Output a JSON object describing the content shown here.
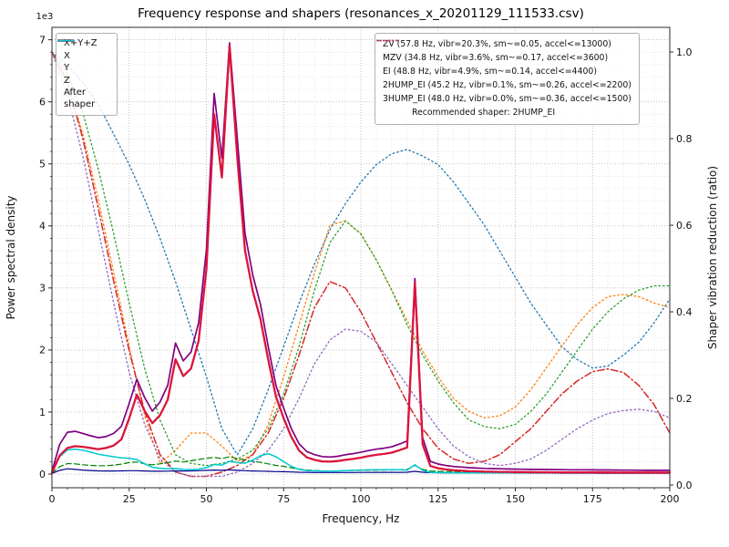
{
  "axes": {
    "x": {
      "label": "Frequency, Hz",
      "min": 0,
      "max": 200,
      "ticks": [
        0,
        25,
        50,
        75,
        100,
        125,
        150,
        175,
        200
      ],
      "tick_labels": [
        "0",
        "25",
        "50",
        "75",
        "100",
        "125",
        "150",
        "175",
        "200"
      ],
      "minor_step": 5
    },
    "y_left": {
      "label": "Power spectral density",
      "offset_text": "1e3",
      "min": -220,
      "max": 7200,
      "ticks": [
        0,
        1000,
        2000,
        3000,
        4000,
        5000,
        6000,
        7000
      ],
      "tick_labels": [
        "0",
        "1",
        "2",
        "3",
        "4",
        "5",
        "6",
        "7"
      ],
      "minor_step": 200
    },
    "y_right": {
      "label": "Shaper vibration reduction (ratio)",
      "min": -0.0063,
      "max": 1.057,
      "ticks": [
        0,
        0.2,
        0.4,
        0.6,
        0.8,
        1
      ],
      "tick_labels": [
        "0.0",
        "0.2",
        "0.4",
        "0.6",
        "0.8",
        "1.0"
      ]
    }
  },
  "legend_left": {
    "items": [
      {
        "label": "X+Y+Z",
        "color": "#800080",
        "style": "solid"
      },
      {
        "label": "X",
        "color": "#dc143c",
        "style": "solid"
      },
      {
        "label": "Y",
        "color": "#008000",
        "style": "dashed"
      },
      {
        "label": "Z",
        "color": "#00008b",
        "style": "solid"
      },
      {
        "label": "After shaper",
        "color": "#00c8d0",
        "style": "solid"
      }
    ]
  },
  "legend_right": {
    "items": [
      {
        "label": "ZV (57.8 Hz, vibr=20.3%, sm~=0.05, accel<=13000)",
        "color": "#1f77b4",
        "style": "dotted"
      },
      {
        "label": "MZV (34.8 Hz, vibr=3.6%, sm~=0.17, accel<=3600)",
        "color": "#ff7f0e",
        "style": "dotted"
      },
      {
        "label": "EI (48.8 Hz, vibr=4.9%, sm~=0.14, accel<=4400)",
        "color": "#2ca02c",
        "style": "dotted"
      },
      {
        "label": "2HUMP_EI (45.2 Hz, vibr=0.1%, sm~=0.26, accel<=2200)",
        "color": "#d62728",
        "style": "dashdot"
      },
      {
        "label": "3HUMP_EI (48.0 Hz, vibr=0.0%, sm~=0.36, accel<=1500)",
        "color": "#9467bd",
        "style": "dotted"
      }
    ],
    "note": "Recommended shaper: 2HUMP_EI"
  },
  "chart_data": {
    "type": "line",
    "title": "Frequency response and shapers (resonances_x_20201129_111533.csv)",
    "xlabel": "Frequency, Hz",
    "ylabel_left": "Power spectral density",
    "ylabel_right": "Shaper vibration reduction (ratio)",
    "xlim": [
      0,
      200
    ],
    "ylim_left": [
      -220,
      7200
    ],
    "ylim_right": [
      -0.0063,
      1.057
    ],
    "grid": "major+minor",
    "x_psd": [
      0,
      2.5,
      5,
      7.5,
      10,
      12.5,
      15,
      17.5,
      20,
      22.5,
      25,
      27.5,
      30,
      32.5,
      35,
      37.5,
      40,
      42.5,
      45,
      47.5,
      50,
      52.5,
      55,
      57.5,
      60,
      62.5,
      65,
      67.5,
      70,
      72.5,
      75,
      77.5,
      80,
      82.5,
      85,
      87.5,
      90,
      92.5,
      95,
      97.5,
      100,
      102.5,
      105,
      107.5,
      110,
      112.5,
      115,
      117.5,
      120,
      122.5,
      125,
      127.5,
      130,
      132.5,
      135,
      137.5,
      140,
      142.5,
      145,
      147.5,
      150,
      152.5,
      155,
      157.5,
      160,
      162.5,
      165,
      167.5,
      170,
      172.5,
      175,
      177.5,
      180,
      182.5,
      185,
      187.5,
      190,
      192.5,
      195,
      197.5,
      200
    ],
    "psd_series": [
      {
        "name": "X+Y+Z",
        "axis": "left",
        "color": "#800080",
        "style": "solid",
        "width": 1.7,
        "values": [
          45,
          480,
          675,
          690,
          655,
          618,
          587,
          605,
          655,
          772,
          1140,
          1530,
          1235,
          1016,
          1161,
          1433,
          2112,
          1825,
          1967,
          2440,
          3615,
          6135,
          5090,
          6950,
          5410,
          3880,
          3205,
          2738,
          2059,
          1430,
          1063,
          734,
          490,
          363,
          314,
          282,
          275,
          287,
          312,
          329,
          352,
          379,
          402,
          418,
          439,
          484,
          535,
          3150,
          585,
          204,
          162,
          138,
          122,
          113,
          103,
          98,
          92,
          89,
          86,
          83,
          80,
          79,
          76,
          75,
          74,
          73,
          71,
          70,
          69,
          69,
          68,
          66,
          66,
          65,
          64,
          64,
          62,
          61,
          61,
          61,
          61
        ]
      },
      {
        "name": "Y",
        "axis": "left",
        "color": "#008000",
        "style": "dashed",
        "width": 1.2,
        "values": [
          15,
          120,
          170,
          165,
          150,
          140,
          135,
          135,
          145,
          160,
          185,
          195,
          165,
          150,
          165,
          185,
          210,
          195,
          215,
          235,
          255,
          270,
          250,
          280,
          250,
          225,
          205,
          190,
          165,
          140,
          125,
          100,
          80,
          65,
          58,
          52,
          50,
          52,
          56,
          58,
          60,
          62,
          64,
          65,
          66,
          70,
          75,
          140,
          75,
          50,
          45,
          42,
          40,
          38,
          36,
          35,
          34,
          33,
          32,
          31,
          30,
          30,
          29,
          29,
          28,
          28,
          27,
          27,
          26,
          26,
          26,
          25,
          25,
          25,
          24,
          24,
          24,
          23,
          23,
          23,
          23
        ]
      },
      {
        "name": "Z",
        "axis": "left",
        "color": "#00008b",
        "style": "solid",
        "width": 1.2,
        "values": [
          10,
          60,
          85,
          75,
          65,
          58,
          52,
          50,
          50,
          52,
          55,
          55,
          50,
          46,
          46,
          48,
          52,
          50,
          52,
          55,
          60,
          65,
          60,
          68,
          60,
          55,
          50,
          48,
          44,
          40,
          38,
          34,
          30,
          28,
          26,
          25,
          25,
          25,
          26,
          26,
          27,
          27,
          28,
          28,
          28,
          29,
          30,
          45,
          30,
          24,
          22,
          21,
          20,
          20,
          19,
          19,
          18,
          18,
          18,
          17,
          17,
          17,
          16,
          16,
          16,
          16,
          15,
          15,
          15,
          15,
          15,
          14,
          14,
          14,
          14,
          14,
          13,
          13,
          13,
          13,
          13
        ]
      },
      {
        "name": "After shaper",
        "axis": "left",
        "color": "#00c8d0",
        "style": "solid",
        "width": 1.5,
        "values": [
          20,
          280,
          390,
          400,
          385,
          355,
          320,
          300,
          280,
          260,
          255,
          235,
          165,
          110,
          95,
          85,
          90,
          75,
          72,
          80,
          105,
          155,
          145,
          205,
          185,
          175,
          225,
          295,
          330,
          280,
          200,
          125,
          75,
          58,
          52,
          48,
          47,
          50,
          55,
          60,
          65,
          68,
          70,
          70,
          70,
          70,
          65,
          150,
          60,
          28,
          24,
          22,
          21,
          20,
          20,
          20,
          20,
          20,
          20,
          20,
          21,
          21,
          22,
          22,
          23,
          23,
          24,
          24,
          24,
          24,
          24,
          24,
          24,
          23,
          23,
          23,
          22,
          22,
          22,
          21,
          21
        ]
      },
      {
        "name": "X",
        "axis": "left",
        "color": "#dc143c",
        "style": "solid",
        "width": 2.3,
        "values": [
          20,
          300,
          420,
          450,
          440,
          420,
          400,
          420,
          460,
          560,
          900,
          1280,
          1020,
          820,
          950,
          1200,
          1850,
          1580,
          1700,
          2150,
          3300,
          5800,
          4780,
          6900,
          5100,
          3600,
          2950,
          2500,
          1850,
          1250,
          900,
          600,
          380,
          270,
          230,
          205,
          200,
          210,
          230,
          245,
          265,
          290,
          310,
          325,
          345,
          385,
          430,
          3080,
          480,
          130,
          95,
          75,
          62,
          55,
          48,
          44,
          40,
          38,
          36,
          35,
          33,
          32,
          31,
          30,
          30,
          29,
          29,
          28,
          28,
          28,
          27,
          27,
          27,
          26,
          26,
          26,
          25,
          25,
          25,
          25,
          25
        ]
      }
    ],
    "x_shapers": [
      0,
      5,
      10,
      15,
      20,
      25,
      30,
      35,
      40,
      45,
      50,
      55,
      60,
      65,
      70,
      75,
      80,
      85,
      90,
      95,
      100,
      105,
      110,
      115,
      120,
      125,
      130,
      135,
      140,
      145,
      150,
      155,
      160,
      165,
      170,
      175,
      180,
      185,
      190,
      195,
      200
    ],
    "shaper_series": [
      {
        "name": "ZV",
        "axis": "right",
        "color": "#1f77b4",
        "style": "dotted",
        "width": 1.3,
        "values": [
          1.0,
          0.97,
          0.93,
          0.88,
          0.81,
          0.74,
          0.66,
          0.57,
          0.47,
          0.36,
          0.25,
          0.13,
          0.07,
          0.13,
          0.22,
          0.32,
          0.42,
          0.51,
          0.59,
          0.65,
          0.7,
          0.74,
          0.765,
          0.775,
          0.76,
          0.74,
          0.7,
          0.65,
          0.6,
          0.54,
          0.48,
          0.42,
          0.37,
          0.32,
          0.29,
          0.27,
          0.275,
          0.3,
          0.33,
          0.375,
          0.43
        ]
      },
      {
        "name": "MZV",
        "axis": "right",
        "color": "#ff7f0e",
        "style": "dotted",
        "width": 1.3,
        "values": [
          1.0,
          0.93,
          0.81,
          0.66,
          0.49,
          0.32,
          0.16,
          0.05,
          0.08,
          0.12,
          0.12,
          0.09,
          0.055,
          0.07,
          0.14,
          0.25,
          0.37,
          0.49,
          0.6,
          0.61,
          0.58,
          0.52,
          0.45,
          0.38,
          0.31,
          0.25,
          0.2,
          0.17,
          0.155,
          0.16,
          0.18,
          0.22,
          0.27,
          0.32,
          0.37,
          0.41,
          0.435,
          0.44,
          0.435,
          0.42,
          0.41
        ]
      },
      {
        "name": "EI",
        "axis": "right",
        "color": "#2ca02c",
        "style": "dotted",
        "width": 1.3,
        "values": [
          1.0,
          0.95,
          0.86,
          0.73,
          0.58,
          0.42,
          0.27,
          0.15,
          0.07,
          0.05,
          0.045,
          0.05,
          0.06,
          0.08,
          0.13,
          0.21,
          0.32,
          0.45,
          0.56,
          0.61,
          0.58,
          0.52,
          0.45,
          0.37,
          0.3,
          0.24,
          0.19,
          0.15,
          0.135,
          0.13,
          0.14,
          0.17,
          0.21,
          0.26,
          0.31,
          0.36,
          0.4,
          0.43,
          0.45,
          0.46,
          0.46
        ]
      },
      {
        "name": "2HUMP_EI",
        "axis": "right",
        "color": "#d62728",
        "style": "dashdot",
        "width": 1.5,
        "values": [
          1.0,
          0.93,
          0.8,
          0.64,
          0.47,
          0.31,
          0.17,
          0.07,
          0.03,
          0.02,
          0.02,
          0.03,
          0.045,
          0.07,
          0.12,
          0.2,
          0.3,
          0.41,
          0.47,
          0.455,
          0.4,
          0.33,
          0.26,
          0.19,
          0.13,
          0.085,
          0.06,
          0.05,
          0.055,
          0.07,
          0.1,
          0.13,
          0.17,
          0.21,
          0.24,
          0.262,
          0.268,
          0.26,
          0.23,
          0.185,
          0.12
        ]
      },
      {
        "name": "3HUMP_EI",
        "axis": "right",
        "color": "#9467bd",
        "style": "dotted",
        "width": 1.3,
        "values": [
          1.0,
          0.9,
          0.76,
          0.59,
          0.42,
          0.26,
          0.14,
          0.06,
          0.03,
          0.02,
          0.02,
          0.02,
          0.03,
          0.05,
          0.08,
          0.13,
          0.2,
          0.28,
          0.335,
          0.36,
          0.355,
          0.33,
          0.28,
          0.23,
          0.18,
          0.13,
          0.09,
          0.065,
          0.05,
          0.045,
          0.05,
          0.06,
          0.08,
          0.105,
          0.13,
          0.15,
          0.165,
          0.172,
          0.175,
          0.17,
          0.155
        ]
      }
    ]
  }
}
